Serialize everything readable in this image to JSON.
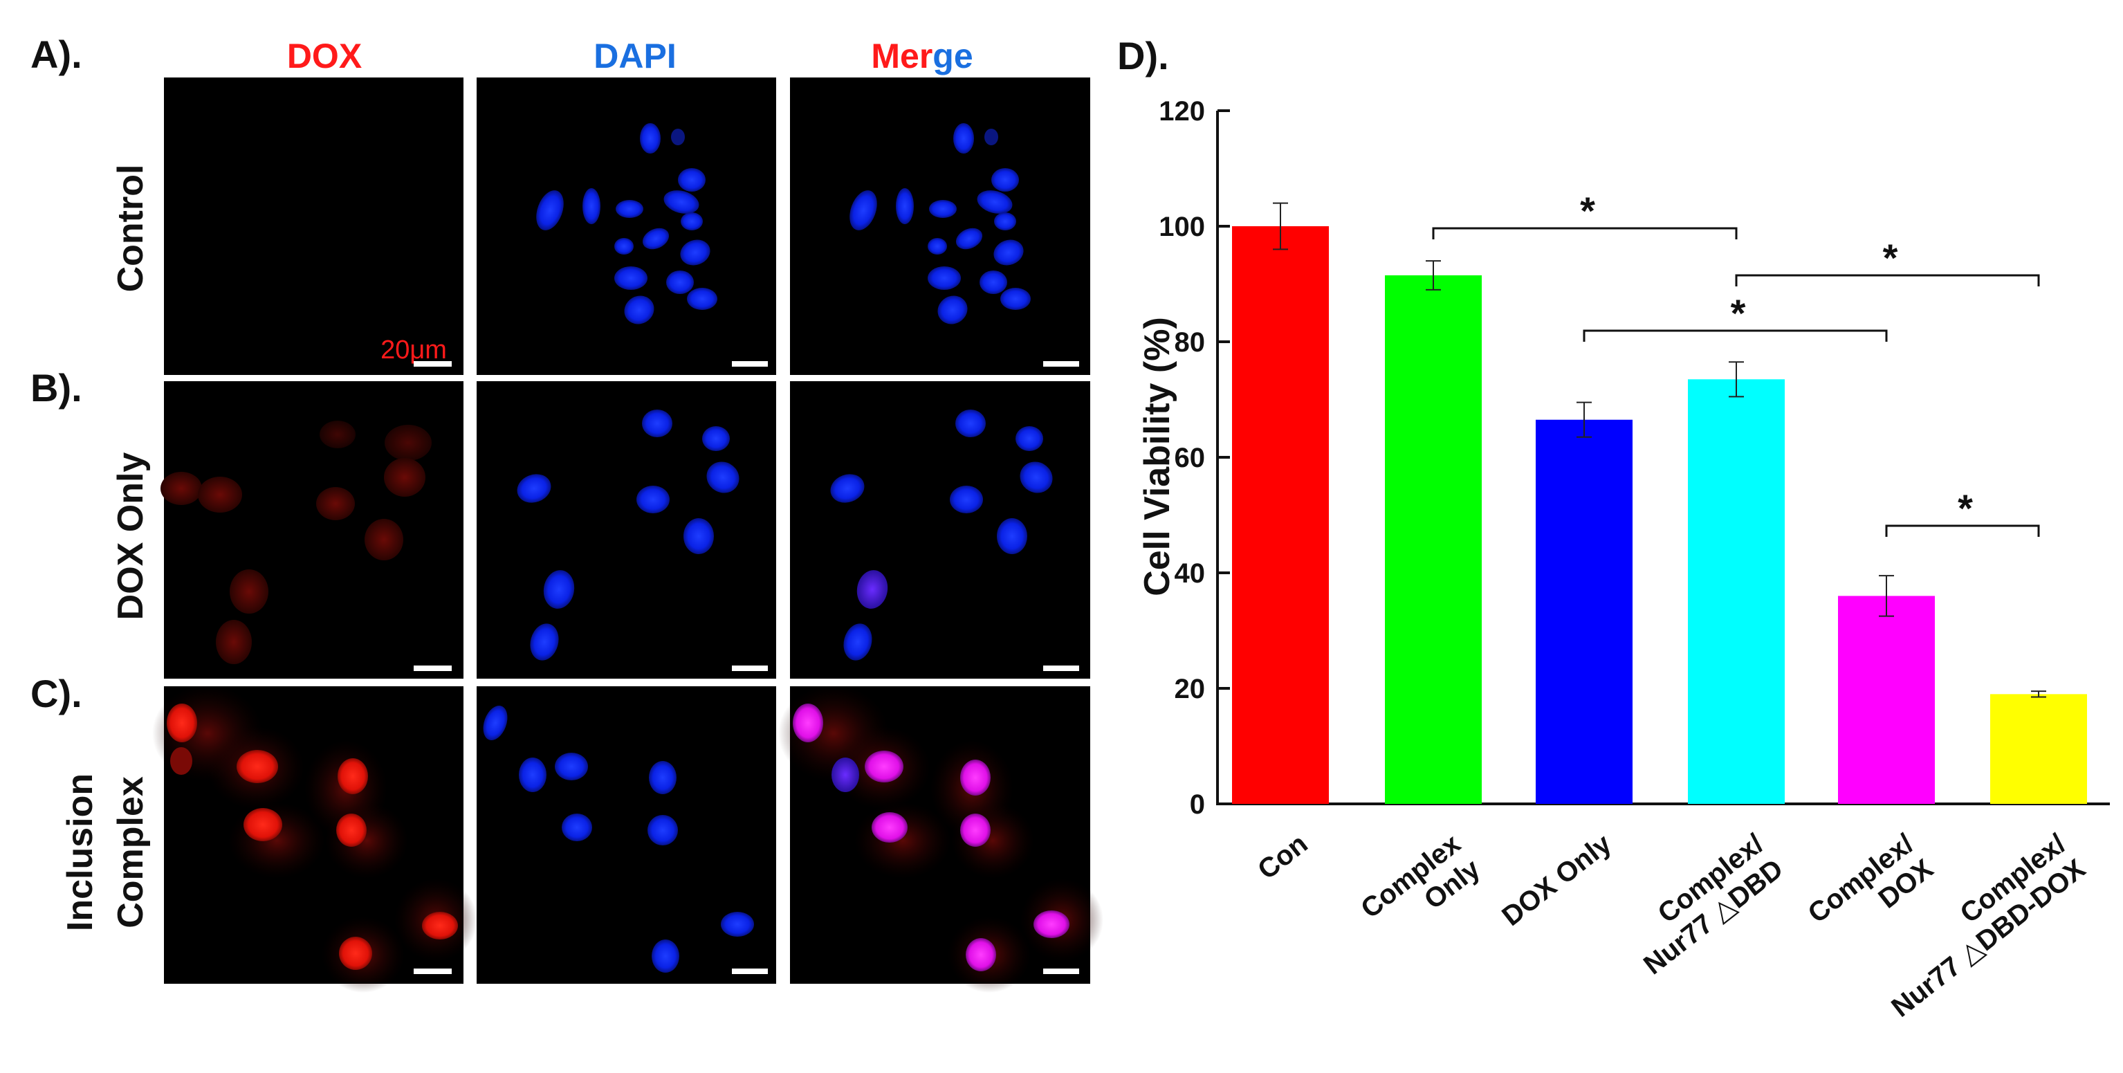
{
  "panels": {
    "a_label": "A).",
    "b_label": "B).",
    "c_label": "C).",
    "d_label": "D)."
  },
  "micro": {
    "columns": [
      {
        "id": "dox",
        "label": "DOX"
      },
      {
        "id": "dapi",
        "label": "DAPI"
      },
      {
        "id": "merge",
        "label_a": "Mer",
        "label_b": "ge"
      }
    ],
    "rows": [
      {
        "id": "control",
        "lines": [
          "Control"
        ]
      },
      {
        "id": "dox-only",
        "lines": [
          "DOX Only"
        ]
      },
      {
        "id": "inclusion",
        "lines": [
          "Inclusion",
          "Complex"
        ]
      }
    ],
    "scale_bar_label": "20μm",
    "colors": {
      "dox": "#ff1a1a",
      "dapi": "#0a2cff",
      "merge": "#ff22ff",
      "dapi_title": "#1a6fe0",
      "dox_title": "#ff1a1a"
    }
  },
  "chart_data": {
    "type": "bar",
    "ylabel": "Cell Viability (%)",
    "ylim": [
      0,
      120
    ],
    "yticks": [
      0,
      20,
      40,
      60,
      80,
      100,
      120
    ],
    "categories": [
      {
        "lines": [
          "Con"
        ]
      },
      {
        "lines": [
          "Complex",
          "Only"
        ]
      },
      {
        "lines": [
          "DOX Only"
        ]
      },
      {
        "lines": [
          "Complex/",
          "Nur77 △DBD"
        ]
      },
      {
        "lines": [
          "Complex/",
          "DOX"
        ]
      },
      {
        "lines": [
          "Complex/",
          "Nur77 △DBD-DOX"
        ]
      }
    ],
    "values": [
      100,
      91.5,
      66.5,
      73.5,
      36,
      19
    ],
    "errors": [
      4,
      2.5,
      3,
      3,
      3.5,
      0.5
    ],
    "colors": [
      "#ff0000",
      "#00ff00",
      "#0000ff",
      "#00ffff",
      "#ff00ff",
      "#ffff00"
    ],
    "significance": [
      {
        "from": 1,
        "to": 3,
        "label": "*"
      },
      {
        "from": 3,
        "to": 5,
        "label": "*"
      },
      {
        "from": 2,
        "to": 4,
        "label": "*"
      },
      {
        "from": 4,
        "to": 5,
        "label": "*"
      }
    ]
  }
}
